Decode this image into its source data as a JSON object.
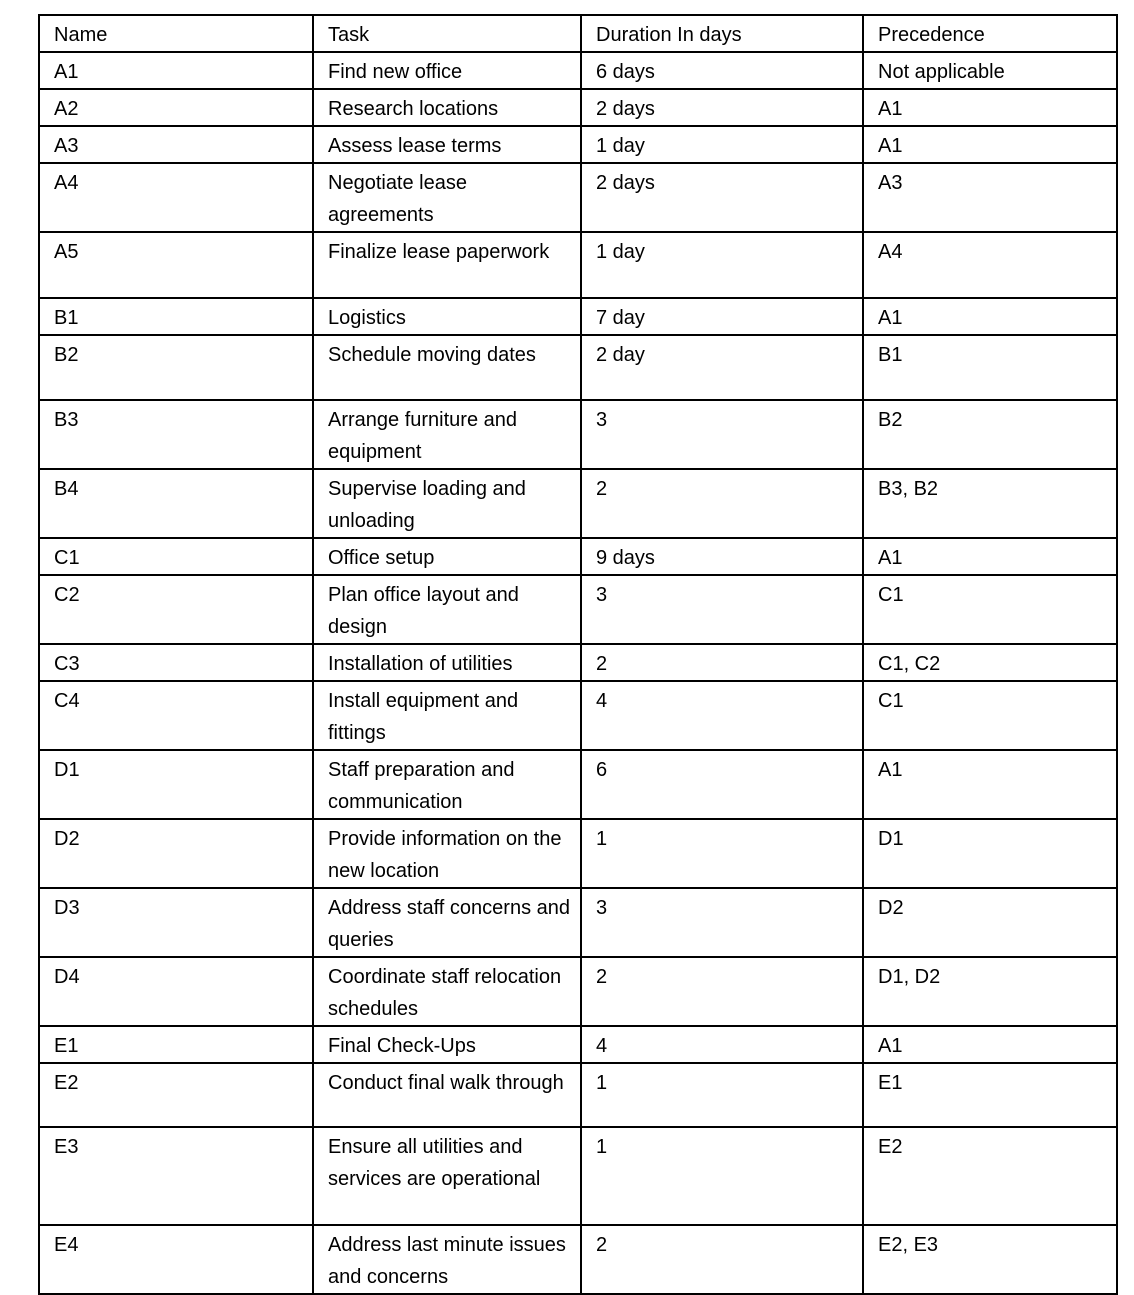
{
  "headers": [
    "Name",
    "Task",
    "Duration In days",
    "Precedence"
  ],
  "rows": [
    [
      "A1",
      "Find new office",
      "6 days",
      "Not applicable"
    ],
    [
      "A2",
      "Research locations",
      "2 days",
      "A1"
    ],
    [
      "A3",
      "Assess lease terms",
      "1 day",
      "A1"
    ],
    [
      "A4",
      "Negotiate lease agreements",
      "2 days",
      "A3"
    ],
    [
      "A5",
      "Finalize lease paperwork",
      "1 day",
      "A4"
    ],
    [
      "B1",
      "Logistics",
      "7 day",
      "A1"
    ],
    [
      "B2",
      "Schedule moving dates",
      "2 day",
      "B1"
    ],
    [
      "B3",
      "Arrange furniture and equipment",
      "3",
      "B2"
    ],
    [
      "B4",
      "Supervise loading and unloading",
      "2",
      "B3, B2"
    ],
    [
      "C1",
      "Office setup",
      "9 days",
      "A1"
    ],
    [
      "C2",
      "Plan office layout and design",
      "3",
      "C1"
    ],
    [
      "C3",
      "Installation of utilities",
      "2",
      "C1, C2"
    ],
    [
      "C4",
      "Install equipment and fittings",
      "4",
      "C1"
    ],
    [
      "D1",
      "Staff preparation and communication",
      "6",
      "A1"
    ],
    [
      "D2",
      "Provide information on the new location",
      "1",
      "D1"
    ],
    [
      "D3",
      "Address staff concerns and queries",
      "3",
      "D2"
    ],
    [
      "D4",
      "Coordinate staff relocation schedules",
      "2",
      "D1, D2"
    ],
    [
      "E1",
      "Final Check-Ups",
      "4",
      "A1"
    ],
    [
      "E2",
      "Conduct final walk through",
      "1",
      "E1"
    ],
    [
      "E3",
      "Ensure all utilities and services are operational",
      "1",
      "E2"
    ],
    [
      "E4",
      "Address last minute issues and concerns",
      "2",
      "E2, E3"
    ]
  ]
}
